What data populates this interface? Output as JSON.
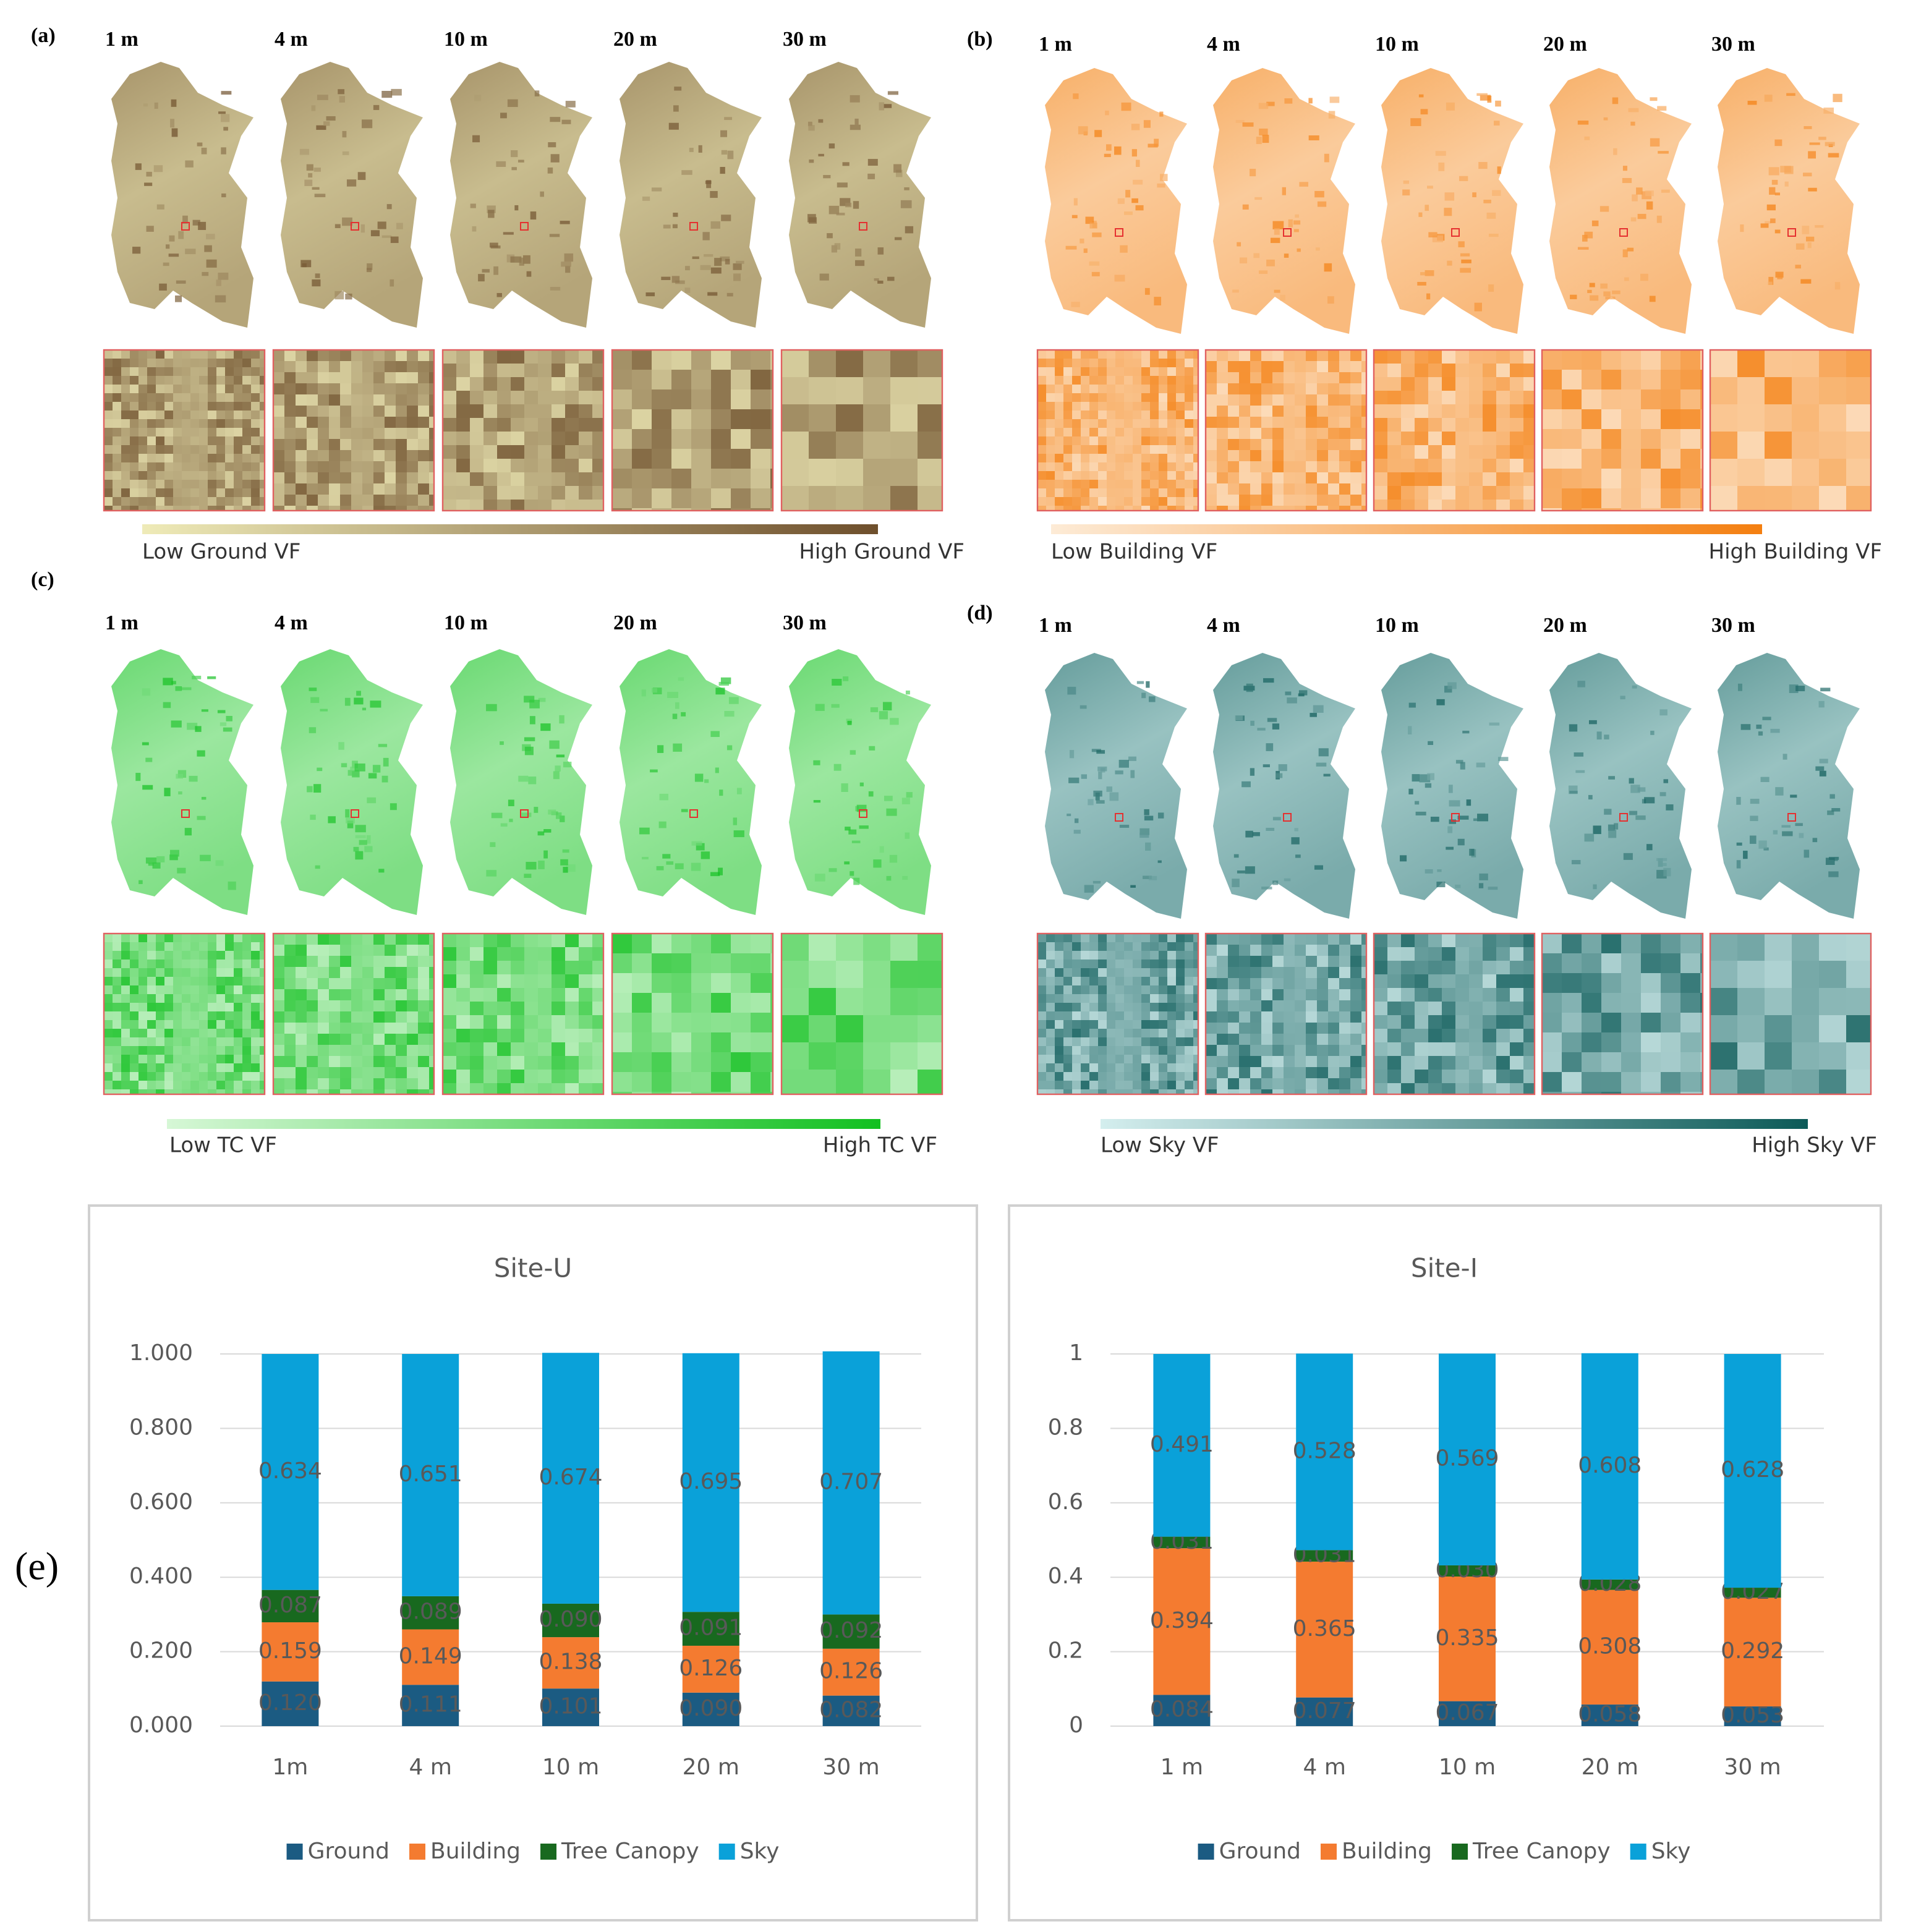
{
  "panels": [
    {
      "label": "(a)",
      "resolutions": [
        "1 m",
        "4 m",
        "10 m",
        "20 m",
        "30 m"
      ],
      "low_label": "Low Ground VF",
      "high_label": "High Ground VF",
      "colors": [
        "#efebb8",
        "#6e4f2c"
      ]
    },
    {
      "label": "(b)",
      "resolutions": [
        "1 m",
        "4 m",
        "10 m",
        "20 m",
        "30 m"
      ],
      "low_label": "Low Building VF",
      "high_label": "High Building VF",
      "colors": [
        "#fdebd6",
        "#f47f10"
      ]
    },
    {
      "label": "(c)",
      "resolutions": [
        "1 m",
        "4 m",
        "10 m",
        "20 m",
        "30 m"
      ],
      "low_label": "Low TC VF",
      "high_label": "High TC VF",
      "colors": [
        "#d6f7d6",
        "#12c020"
      ]
    },
    {
      "label": "(d)",
      "resolutions": [
        "1 m",
        "4 m",
        "10 m",
        "20 m",
        "30 m"
      ],
      "low_label": "Low Sky VF",
      "high_label": "High Sky VF",
      "colors": [
        "#d4eeee",
        "#0c5a58"
      ]
    }
  ],
  "panel_label_e": "(e)",
  "chart_data": [
    {
      "type": "stacked_bar",
      "title": "Site-U",
      "categories": [
        "1m",
        "4 m",
        "10 m",
        "20 m",
        "30 m"
      ],
      "ylim": [
        0,
        1
      ],
      "yticks": [
        {
          "value": 0,
          "label": "0.000"
        },
        {
          "value": 0.2,
          "label": "0.200"
        },
        {
          "value": 0.4,
          "label": "0.400"
        },
        {
          "value": 0.6,
          "label": "0.600"
        },
        {
          "value": 0.8,
          "label": "0.800"
        },
        {
          "value": 1,
          "label": "1.000"
        }
      ],
      "grid": true,
      "legend": "bottom",
      "series": [
        {
          "name": "Ground",
          "color": "#1b5b82",
          "values": [
            0.12,
            0.111,
            0.101,
            0.09,
            0.082
          ],
          "value_labels": [
            "0.120",
            "0.111",
            "0.101",
            "0.090",
            "0.082"
          ]
        },
        {
          "name": "Building",
          "color": "#f47b30",
          "values": [
            0.159,
            0.149,
            0.138,
            0.126,
            0.126
          ],
          "value_labels": [
            "0.159",
            "0.149",
            "0.138",
            "0.126",
            "0.126"
          ]
        },
        {
          "name": "Tree Canopy",
          "color": "#18691f",
          "values": [
            0.087,
            0.089,
            0.09,
            0.091,
            0.092
          ],
          "value_labels": [
            "0.087",
            "0.089",
            "0.090",
            "0.091",
            "0.092"
          ]
        },
        {
          "name": "Sky",
          "color": "#0aa1d9",
          "values": [
            0.634,
            0.651,
            0.674,
            0.695,
            0.707
          ],
          "value_labels": [
            "0.634",
            "0.651",
            "0.674",
            "0.695",
            "0.707"
          ]
        }
      ]
    },
    {
      "type": "stacked_bar",
      "title": "Site-I",
      "categories": [
        "1 m",
        "4 m",
        "10 m",
        "20 m",
        "30 m"
      ],
      "ylim": [
        0,
        1
      ],
      "yticks": [
        0,
        0.2,
        0.4,
        0.6,
        0.8,
        1
      ],
      "grid": true,
      "legend": "bottom",
      "series": [
        {
          "name": "Ground",
          "color": "#1b5b82",
          "values": [
            0.084,
            0.077,
            0.067,
            0.058,
            0.053
          ],
          "value_labels": [
            "0.084",
            "0.077",
            "0.067",
            "0.058",
            "0.053"
          ]
        },
        {
          "name": "Building",
          "color": "#f47b30",
          "values": [
            0.394,
            0.365,
            0.335,
            0.308,
            0.292
          ],
          "value_labels": [
            "0.394",
            "0.365",
            "0.335",
            "0.308",
            "0.292"
          ]
        },
        {
          "name": "Tree Canopy",
          "color": "#18691f",
          "values": [
            0.031,
            0.031,
            0.03,
            0.028,
            0.027
          ],
          "value_labels": [
            "0.031",
            "0.031",
            "0.030",
            "0.028",
            "0.027"
          ]
        },
        {
          "name": "Sky",
          "color": "#0aa1d9",
          "values": [
            0.491,
            0.528,
            0.569,
            0.608,
            0.628
          ],
          "value_labels": [
            "0.491",
            "0.528",
            "0.569",
            "0.608",
            "0.628"
          ]
        }
      ]
    }
  ]
}
